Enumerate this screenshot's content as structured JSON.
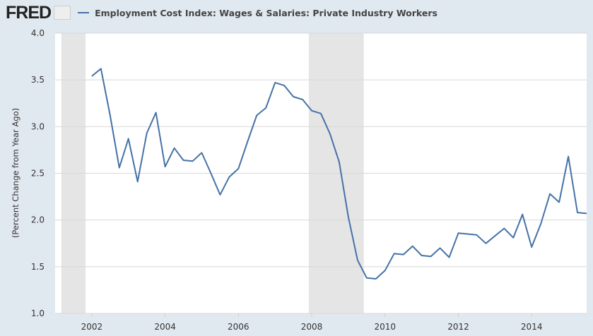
{
  "header": {
    "logo": "FRED",
    "legend_label": "Employment Cost Index: Wages & Salaries: Private Industry Workers"
  },
  "colors": {
    "series": "#4572a7",
    "recession": "#e5e5e5",
    "background": "#e1e9f0"
  },
  "chart_data": {
    "type": "line",
    "title": "Employment Cost Index: Wages & Salaries: Private Industry Workers",
    "xlabel": "",
    "ylabel": "(Percent Change from Year Ago)",
    "xlim": [
      2001.0,
      2015.5
    ],
    "ylim": [
      1.0,
      4.0
    ],
    "yticks": [
      "1.0",
      "1.5",
      "2.0",
      "2.5",
      "3.0",
      "3.5",
      "4.0"
    ],
    "xticks": [
      "2002",
      "2004",
      "2006",
      "2008",
      "2010",
      "2012",
      "2014"
    ],
    "grid": true,
    "legend": "top-left",
    "recessions": [
      [
        2001.17,
        2001.83
      ],
      [
        2007.92,
        2009.42
      ]
    ],
    "series": [
      {
        "name": "Employment Cost Index: Wages & Salaries: Private Industry Workers",
        "start": 2002.0,
        "frequency": "quarterly",
        "values": [
          3.54,
          3.62,
          3.12,
          2.56,
          2.87,
          2.41,
          2.93,
          3.15,
          2.57,
          2.77,
          2.64,
          2.63,
          2.72,
          2.5,
          2.27,
          2.46,
          2.55,
          2.84,
          3.12,
          3.2,
          3.47,
          3.44,
          3.32,
          3.29,
          3.17,
          3.14,
          2.92,
          2.62,
          2.03,
          1.57,
          1.38,
          1.37,
          1.46,
          1.64,
          1.63,
          1.72,
          1.62,
          1.61,
          1.7,
          1.6,
          1.86,
          1.85,
          1.84,
          1.75,
          1.83,
          1.91,
          1.81,
          2.06,
          1.71,
          1.96,
          2.28,
          2.19,
          2.68,
          2.08,
          2.07
        ]
      }
    ]
  }
}
